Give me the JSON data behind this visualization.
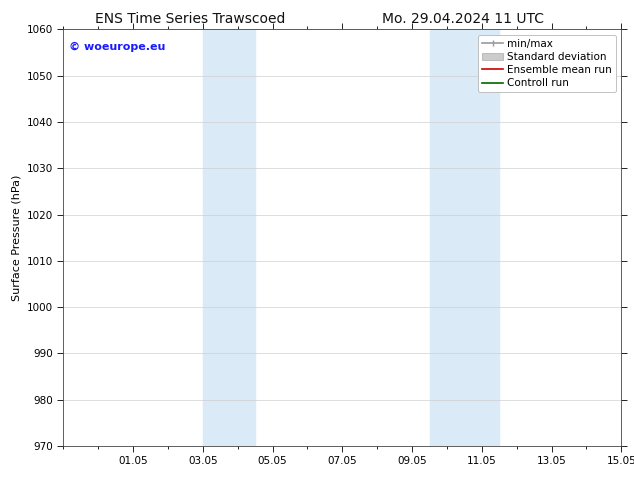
{
  "title_left": "ENS Time Series Trawscoed",
  "title_right": "Mo. 29.04.2024 11 UTC",
  "ylabel": "Surface Pressure (hPa)",
  "ylim": [
    970,
    1060
  ],
  "yticks": [
    970,
    980,
    990,
    1000,
    1010,
    1020,
    1030,
    1040,
    1050,
    1060
  ],
  "xlim": [
    0,
    16
  ],
  "xtick_labels": [
    "01.05",
    "03.05",
    "05.05",
    "07.05",
    "09.05",
    "11.05",
    "13.05",
    "15.05"
  ],
  "xtick_positions": [
    2,
    4,
    6,
    8,
    10,
    12,
    14,
    16
  ],
  "shaded_regions": [
    {
      "xmin": 4.0,
      "xmax": 5.5,
      "color": "#daeaf7"
    },
    {
      "xmin": 10.5,
      "xmax": 12.5,
      "color": "#daeaf7"
    }
  ],
  "watermark": "© woeurope.eu",
  "watermark_color": "#1a1aff",
  "bg_color": "#ffffff",
  "plot_bg_color": "#ffffff",
  "grid_color": "#d0d0d0",
  "title_fontsize": 10,
  "axis_label_fontsize": 8,
  "tick_fontsize": 7.5,
  "legend_fontsize": 7.5
}
